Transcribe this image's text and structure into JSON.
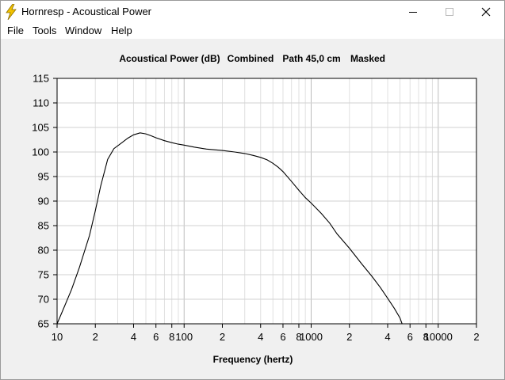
{
  "window": {
    "title": "Hornresp - Acoustical Power",
    "icon": "lightning-bolt-icon",
    "controls": [
      "minimize-icon",
      "maximize-icon",
      "close-icon"
    ]
  },
  "menu": {
    "items": [
      "File",
      "Tools",
      "Window",
      "Help"
    ]
  },
  "chart_data": {
    "type": "line",
    "title_parts": [
      "Acoustical Power (dB)",
      "Combined",
      "Path 45,0 cm",
      "Masked"
    ],
    "xlabel": "Frequency (hertz)",
    "ylabel": "",
    "x_scale": "log",
    "xlim": [
      10,
      20000
    ],
    "ylim": [
      65,
      115
    ],
    "y_ticks": [
      115,
      110,
      105,
      100,
      95,
      90,
      85,
      80,
      75,
      70,
      65
    ],
    "x_tick_labels": [
      {
        "x": 10,
        "label": "10"
      },
      {
        "x": 20,
        "label": "2"
      },
      {
        "x": 40,
        "label": "4"
      },
      {
        "x": 60,
        "label": "6"
      },
      {
        "x": 80,
        "label": "8"
      },
      {
        "x": 100,
        "label": "100"
      },
      {
        "x": 200,
        "label": "2"
      },
      {
        "x": 400,
        "label": "4"
      },
      {
        "x": 600,
        "label": "6"
      },
      {
        "x": 800,
        "label": "8"
      },
      {
        "x": 1000,
        "label": "1000"
      },
      {
        "x": 2000,
        "label": "2"
      },
      {
        "x": 4000,
        "label": "4"
      },
      {
        "x": 6000,
        "label": "6"
      },
      {
        "x": 8000,
        "label": "8"
      },
      {
        "x": 10000,
        "label": "10000"
      },
      {
        "x": 20000,
        "label": "2"
      }
    ],
    "grid": true,
    "line_color": "#000000",
    "series": [
      {
        "x": [
          10,
          11,
          13,
          15,
          18,
          20,
          22,
          25,
          28,
          32,
          36,
          40,
          45,
          50,
          55,
          60,
          70,
          80,
          90,
          100,
          120,
          150,
          200,
          250,
          300,
          350,
          400,
          450,
          500,
          550,
          600,
          700,
          800,
          900,
          1000,
          1200,
          1400,
          1600,
          2000,
          2500,
          3000,
          3500,
          4000,
          4500,
          5000,
          5200
        ],
        "y": [
          65,
          67.5,
          72,
          76.5,
          83,
          88,
          93,
          98.5,
          100.7,
          101.8,
          102.8,
          103.5,
          103.9,
          103.7,
          103.3,
          102.9,
          102.3,
          101.9,
          101.6,
          101.4,
          101.0,
          100.6,
          100.3,
          100.0,
          99.7,
          99.3,
          98.9,
          98.4,
          97.7,
          96.9,
          96.0,
          94.0,
          92.2,
          90.7,
          89.6,
          87.5,
          85.5,
          83.3,
          80.4,
          77.2,
          74.7,
          72.4,
          70.2,
          68.2,
          66.2,
          65.0
        ]
      }
    ]
  }
}
